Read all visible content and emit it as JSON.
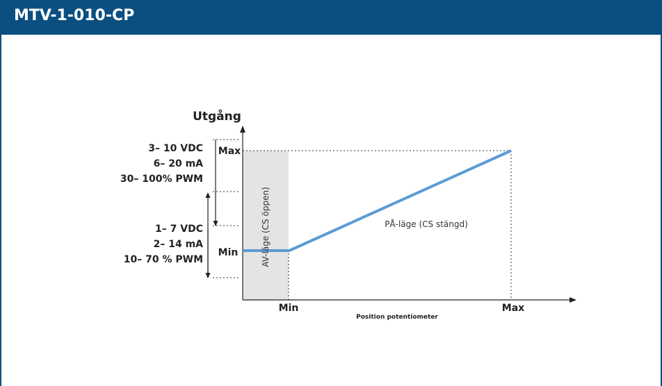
{
  "header": {
    "title": "MTV-1-010-CP"
  },
  "diagram": {
    "y_axis_label": "Utgång",
    "x_axis_label": "Position potentiometer",
    "y_ticks": {
      "max": "Max",
      "min": "Min"
    },
    "x_ticks": {
      "min": "Min",
      "max": "Max"
    },
    "upper_range": [
      "3– 10 VDC",
      "6– 20 mA",
      "30– 100% PWM"
    ],
    "lower_range": [
      "1– 7 VDC",
      "2– 14 mA",
      "10– 70 % PWM"
    ],
    "off_mode_label": "AV-läge (CS öppen)",
    "on_mode_label": "PÅ-läge (CS stängd)",
    "colors": {
      "header": "#0b4f80",
      "curve": "#5b9bd5",
      "off_zone": "#e4e4e4"
    }
  }
}
